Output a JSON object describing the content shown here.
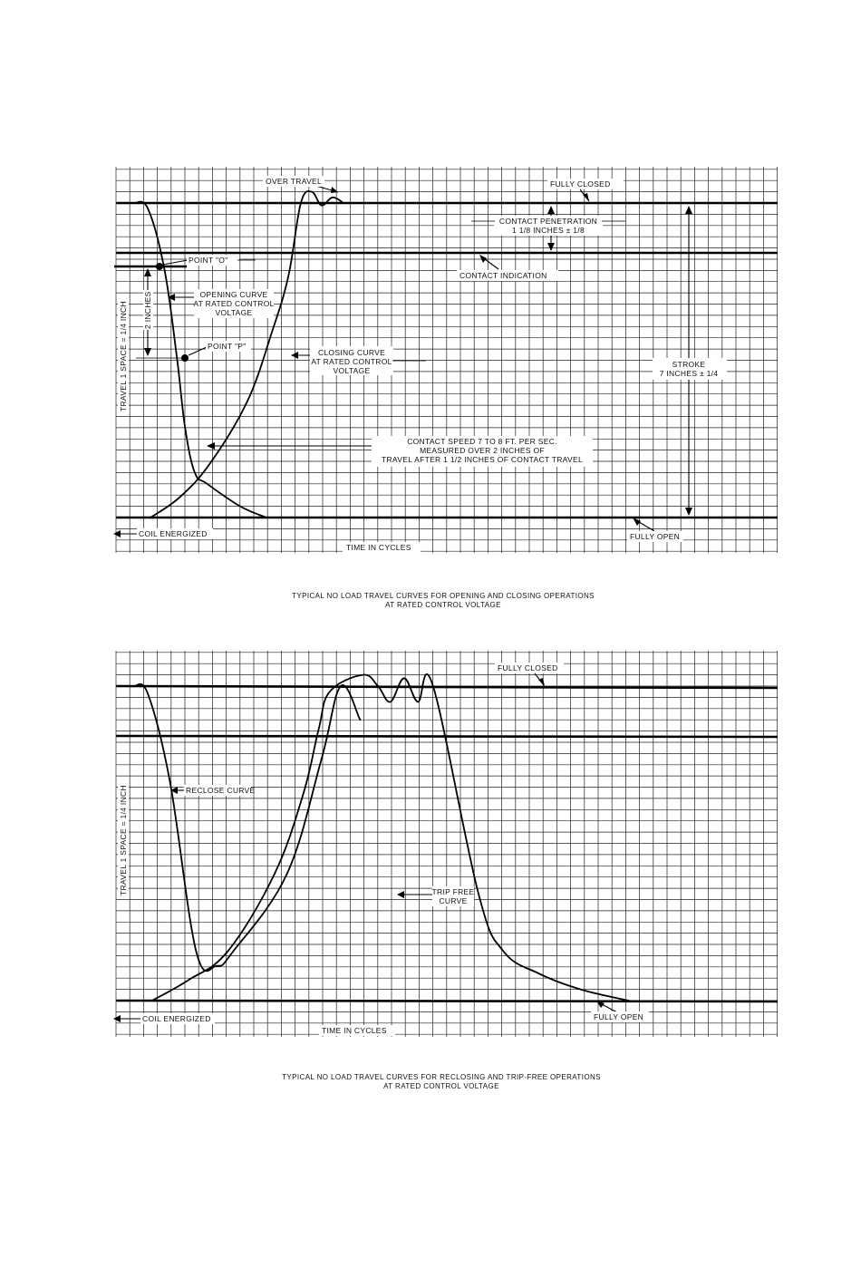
{
  "charts": [
    {
      "name": "opening-closing",
      "labels": {
        "over_travel": "OVER TRAVEL",
        "fully_closed": "FULLY CLOSED",
        "contact_penetration_1": "CONTACT PENETRATION",
        "contact_penetration_2": "1 1/8 INCHES ± 1/8",
        "contact_indication": "CONTACT INDICATION",
        "point_o": "POINT \"O\"",
        "opening_curve_1": "OPENING CURVE",
        "opening_curve_2": "AT RATED CONTROL",
        "opening_curve_3": "VOLTAGE",
        "two_inches": "2 INCHES",
        "point_p": "POINT \"P\"",
        "closing_curve_1": "CLOSING CURVE",
        "closing_curve_2": "AT RATED CONTROL",
        "closing_curve_3": "VOLTAGE",
        "stroke_1": "STROKE",
        "stroke_2": "7 INCHES ± 1/4",
        "speed_1": "CONTACT SPEED 7 TO 8 FT. PER SEC.",
        "speed_2": "MEASURED OVER 2 INCHES OF",
        "speed_3": "TRAVEL AFTER 1 1/2 INCHES OF CONTACT TRAVEL",
        "coil_energized": "COIL ENERGIZED",
        "fully_open": "FULLY OPEN",
        "xlabel": "TIME IN CYCLES",
        "ylabel": "TRAVEL 1 SPACE = 1/4 INCH"
      },
      "caption_1": "TYPICAL NO LOAD TRAVEL CURVES FOR OPENING AND CLOSING OPERATIONS",
      "caption_2": "AT RATED CONTROL VOLTAGE"
    },
    {
      "name": "reclosing-tripfree",
      "labels": {
        "fully_closed": "FULLY CLOSED",
        "reclose_curve": "RECLOSE CURVE",
        "trip_free_1": "TRIP FREE",
        "trip_free_2": "CURVE",
        "coil_energized": "COIL ENERGIZED",
        "fully_open": "FULLY OPEN",
        "xlabel": "TIME IN CYCLES",
        "ylabel": "TRAVEL 1 SPACE = 1/4 INCH"
      },
      "caption_1": "TYPICAL NO LOAD TRAVEL CURVES FOR RECLOSING AND TRIP-FREE OPERATIONS",
      "caption_2": "AT RATED CONTROL VOLTAGE"
    }
  ],
  "chart_data": [
    {
      "type": "line",
      "units": "grid spaces (1 space = 1/4 inch)",
      "ylim": [
        0,
        28
      ],
      "grid": true,
      "reference_lines": [
        {
          "label": "FULLY CLOSED",
          "travel": 28
        },
        {
          "label": "CONTACT INDICATION",
          "travel": 23.5
        },
        {
          "label": "FULLY OPEN",
          "travel": 0
        }
      ],
      "series": [
        {
          "name": "OPENING CURVE",
          "x": [
            0,
            1,
            2.2,
            3.1,
            3.7,
            4.4,
            5.3,
            7.7,
            9.6
          ],
          "y": [
            28,
            27.5,
            22.1,
            14.3,
            8,
            4,
            3,
            1,
            0
          ]
        },
        {
          "name": "CLOSING CURVE",
          "x": [
            1.2,
            3.3,
            5.5,
            8.2,
            10,
            11.2,
            12.1,
            12.9,
            13.6,
            14.4,
            15.2
          ],
          "y": [
            0,
            1.8,
            4.8,
            10.3,
            16.5,
            21.5,
            28,
            29,
            27.8,
            28.5,
            28
          ]
        }
      ]
    },
    {
      "type": "line",
      "units": "grid spaces (1 space = 1/4 inch)",
      "ylim": [
        0,
        28
      ],
      "grid": true,
      "reference_lines": [
        {
          "label": "FULLY CLOSED",
          "travel": 28
        },
        {
          "label": "FULLY OPEN",
          "travel": 0
        }
      ],
      "series": [
        {
          "name": "RECLOSE CURVE",
          "x": [
            0,
            1,
            2.6,
            4.5,
            6,
            7.2,
            11.1,
            13.6,
            15,
            16.4
          ],
          "y": [
            28,
            27.3,
            19.5,
            4.4,
            3.1,
            4.4,
            11.3,
            21.5,
            28,
            25
          ]
        },
        {
          "name": "TRIP FREE CURVE",
          "x": [
            1.3,
            3.9,
            6.8,
            10.2,
            12.3,
            13.4,
            14.2,
            16.6,
            17.7,
            18.6,
            19.6,
            20.6,
            21.7,
            25,
            26.8,
            29.4,
            32.4,
            35.9
          ],
          "y": [
            0,
            1.8,
            4.4,
            11.3,
            18.5,
            24.2,
            27.5,
            29,
            28,
            26.6,
            28.7,
            26.6,
            28,
            9.5,
            4.4,
            2.4,
            1,
            0
          ]
        }
      ]
    }
  ]
}
